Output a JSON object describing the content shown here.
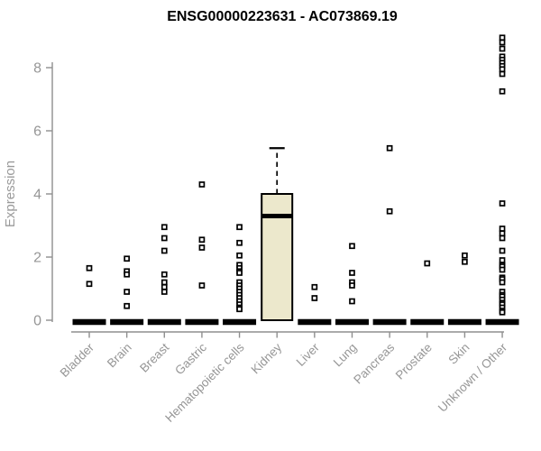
{
  "chart_style": {
    "background": "#ffffff",
    "box_fill": "#ece8cc",
    "box_stroke": "#000000",
    "axis": "#8f8f8f",
    "tick_label": "#969696",
    "axis_label": "#9a9a9a",
    "title_color": "#000000",
    "outlier_stroke": "#000000",
    "outlier_fill": "#ffffff"
  },
  "chart_data": {
    "type": "boxplot",
    "title": "ENSG00000223631 - AC073869.19",
    "xlabel": "",
    "ylabel": "Expression",
    "ylim": [
      0,
      9.05
    ],
    "yticks": [
      0,
      2,
      4,
      6,
      8
    ],
    "grid": false,
    "legend": "none",
    "outlier_marker": "open-square",
    "categories": [
      "Bladder",
      "Brain",
      "Breast",
      "Gastric",
      "Hematopoietic cells",
      "Kidney",
      "Liver",
      "Lung",
      "Pancreas",
      "Prostate",
      "Skin",
      "Unknown / Other"
    ],
    "boxes": [
      {
        "category": "Bladder",
        "q1": 0,
        "median": 0,
        "q3": 0,
        "whisker_low": 0,
        "whisker_high": 0,
        "outliers": [
          1.65,
          1.15
        ]
      },
      {
        "category": "Brain",
        "q1": 0,
        "median": 0,
        "q3": 0,
        "whisker_low": 0,
        "whisker_high": 0,
        "outliers": [
          1.95,
          1.55,
          1.45,
          0.9,
          0.45
        ]
      },
      {
        "category": "Breast",
        "q1": 0,
        "median": 0,
        "q3": 0,
        "whisker_low": 0,
        "whisker_high": 0,
        "outliers": [
          2.95,
          2.6,
          2.2,
          1.45,
          1.2,
          1.05,
          0.9
        ]
      },
      {
        "category": "Gastric",
        "q1": 0,
        "median": 0,
        "q3": 0,
        "whisker_low": 0,
        "whisker_high": 0,
        "outliers": [
          4.3,
          2.55,
          2.3,
          1.1
        ]
      },
      {
        "category": "Hematopoietic cells",
        "q1": 0,
        "median": 0,
        "q3": 0,
        "whisker_low": 0,
        "whisker_high": 0,
        "outliers": [
          2.95,
          2.45,
          2.05,
          1.75,
          1.65,
          1.55,
          1.5,
          1.2,
          1.1,
          1.0,
          0.9,
          0.8,
          0.7,
          0.6,
          0.5,
          0.4,
          0.35
        ]
      },
      {
        "category": "Kidney",
        "q1": 0,
        "median": 3.3,
        "q3": 4.0,
        "whisker_low": 0,
        "whisker_high": 5.45,
        "outliers": []
      },
      {
        "category": "Liver",
        "q1": 0,
        "median": 0,
        "q3": 0,
        "whisker_low": 0,
        "whisker_high": 0,
        "outliers": [
          1.05,
          0.7
        ]
      },
      {
        "category": "Lung",
        "q1": 0,
        "median": 0,
        "q3": 0,
        "whisker_low": 0,
        "whisker_high": 0,
        "outliers": [
          2.35,
          1.5,
          1.2,
          1.1,
          0.6
        ]
      },
      {
        "category": "Pancreas",
        "q1": 0,
        "median": 0,
        "q3": 0,
        "whisker_low": 0,
        "whisker_high": 0,
        "outliers": [
          5.45,
          3.45
        ]
      },
      {
        "category": "Prostate",
        "q1": 0,
        "median": 0,
        "q3": 0,
        "whisker_low": 0,
        "whisker_high": 0,
        "outliers": [
          1.8
        ]
      },
      {
        "category": "Skin",
        "q1": 0,
        "median": 0,
        "q3": 0,
        "whisker_low": 0,
        "whisker_high": 0,
        "outliers": [
          2.05,
          1.85
        ]
      },
      {
        "category": "Unknown / Other",
        "q1": 0,
        "median": 0,
        "q3": 0,
        "whisker_low": 0,
        "whisker_high": 0,
        "outliers": [
          8.95,
          8.8,
          8.6,
          8.35,
          8.25,
          8.15,
          8.05,
          7.95,
          7.8,
          7.25,
          3.7,
          2.9,
          2.75,
          2.6,
          2.2,
          1.9,
          1.75,
          1.7,
          1.6,
          1.35,
          1.3,
          1.2,
          0.9,
          0.8,
          0.75,
          0.65,
          0.55,
          0.5,
          0.4,
          0.3,
          0.25
        ]
      }
    ]
  }
}
